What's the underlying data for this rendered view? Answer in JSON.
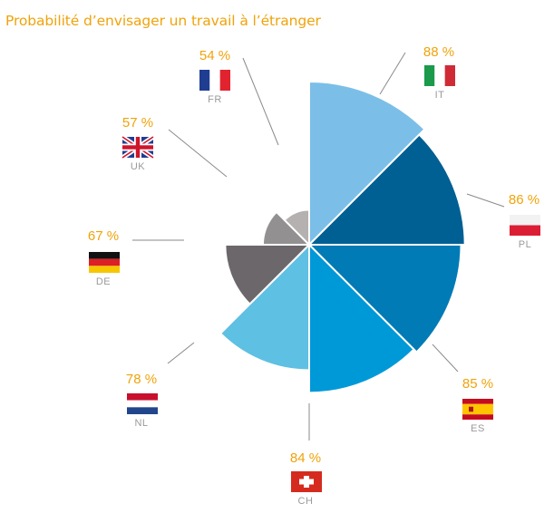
{
  "chart_data": {
    "type": "pie",
    "title": "Probabilité d’envisager un travail à l’étranger",
    "value_format": "{v} %",
    "slices": [
      {
        "code": "IT",
        "value": 88,
        "color": "#7bbfe8",
        "flag": "italy-flag"
      },
      {
        "code": "PL",
        "value": 86,
        "color": "#005f93",
        "flag": "poland-flag"
      },
      {
        "code": "ES",
        "value": 85,
        "color": "#007bb6",
        "flag": "spain-flag"
      },
      {
        "code": "CH",
        "value": 84,
        "color": "#0099d8",
        "flag": "switzerland-flag"
      },
      {
        "code": "NL",
        "value": 78,
        "color": "#5ec0e2",
        "flag": "netherlands-flag"
      },
      {
        "code": "DE",
        "value": 67,
        "color": "#6b676b",
        "flag": "germany-flag"
      },
      {
        "code": "UK",
        "value": 57,
        "color": "#929090",
        "flag": "uk-flag"
      },
      {
        "code": "FR",
        "value": 54,
        "color": "#b5b1b1",
        "flag": "france-flag"
      }
    ]
  }
}
